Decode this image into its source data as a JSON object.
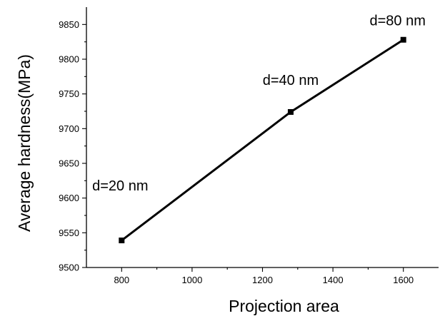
{
  "chart_data": {
    "type": "line",
    "title": "",
    "xlabel": "Projection area",
    "ylabel": "Average hardness(MPa)",
    "xlim": [
      700,
      1700
    ],
    "ylim": [
      9500,
      9875
    ],
    "xticks": [
      800,
      1000,
      1200,
      1400,
      1600
    ],
    "yticks": [
      9500,
      9550,
      9600,
      9650,
      9700,
      9750,
      9800,
      9850
    ],
    "grid": false,
    "series": [
      {
        "x": [
          800,
          1280,
          1600
        ],
        "y": [
          9539,
          9724,
          9828
        ],
        "color": "#000000",
        "marker": "square"
      }
    ],
    "annotations": [
      {
        "text": "d=20 nm",
        "x": 800,
        "y": 9539
      },
      {
        "text": "d=40 nm",
        "x": 1280,
        "y": 9724
      },
      {
        "text": "d=80 nm",
        "x": 1600,
        "y": 9828
      }
    ]
  }
}
